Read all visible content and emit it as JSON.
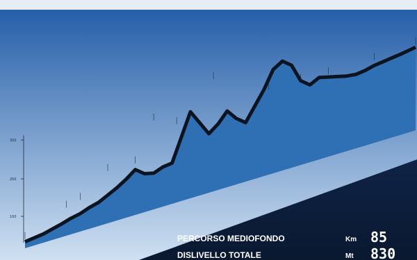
{
  "chart_data": {
    "type": "area",
    "title": "",
    "xlabel": "",
    "ylabel": "",
    "y_ticks": [
      100,
      200,
      300
    ],
    "x": [
      0,
      2,
      4,
      6,
      8,
      10,
      12,
      14,
      16,
      18,
      20,
      22,
      24,
      26,
      28,
      30,
      32,
      34,
      36,
      38,
      40,
      42,
      44,
      46,
      48,
      50,
      52,
      54,
      56,
      58,
      60,
      62,
      64,
      66,
      68,
      70,
      72,
      74,
      76,
      78,
      80,
      82,
      85
    ],
    "y": [
      70,
      75,
      80,
      90,
      100,
      112,
      120,
      135,
      145,
      165,
      185,
      210,
      240,
      210,
      200,
      215,
      220,
      320,
      420,
      360,
      300,
      330,
      375,
      330,
      300,
      360,
      420,
      495,
      520,
      490,
      410,
      380,
      400,
      390,
      380,
      370,
      365,
      370,
      380,
      385,
      390,
      395,
      405
    ],
    "waypoints": [
      {
        "label": "",
        "x": 0,
        "y": 70
      },
      {
        "label": "",
        "x": 9,
        "y": 152
      },
      {
        "label": "",
        "x": 12,
        "y": 168
      },
      {
        "label": "",
        "x": 18,
        "y": 258
      },
      {
        "label": "",
        "x": 24,
        "y": 255
      },
      {
        "label": "",
        "x": 28,
        "y": 418
      },
      {
        "label": "",
        "x": 33,
        "y": 372
      },
      {
        "label": "",
        "x": 41,
        "y": 520
      },
      {
        "label": "",
        "x": 53,
        "y": 402
      },
      {
        "label": "",
        "x": 60,
        "y": 398
      },
      {
        "label": "",
        "x": 66,
        "y": 390
      },
      {
        "label": "",
        "x": 76,
        "y": 392
      },
      {
        "label": "",
        "x": 85,
        "y": 405
      }
    ]
  },
  "summary": {
    "route_label": "PERCORSO MEDIOFONDO",
    "distance_unit": "Km",
    "distance_value": "85",
    "climb_label": "DISLIVELLO TOTALE",
    "climb_unit": "Mt",
    "climb_value": "830"
  },
  "colors": {
    "sky_top": "#1f5aa6",
    "sky_bottom": "#cfe0f2",
    "profile_fill": "#2f6fb4",
    "profile_ridge": "#0b1420"
  }
}
